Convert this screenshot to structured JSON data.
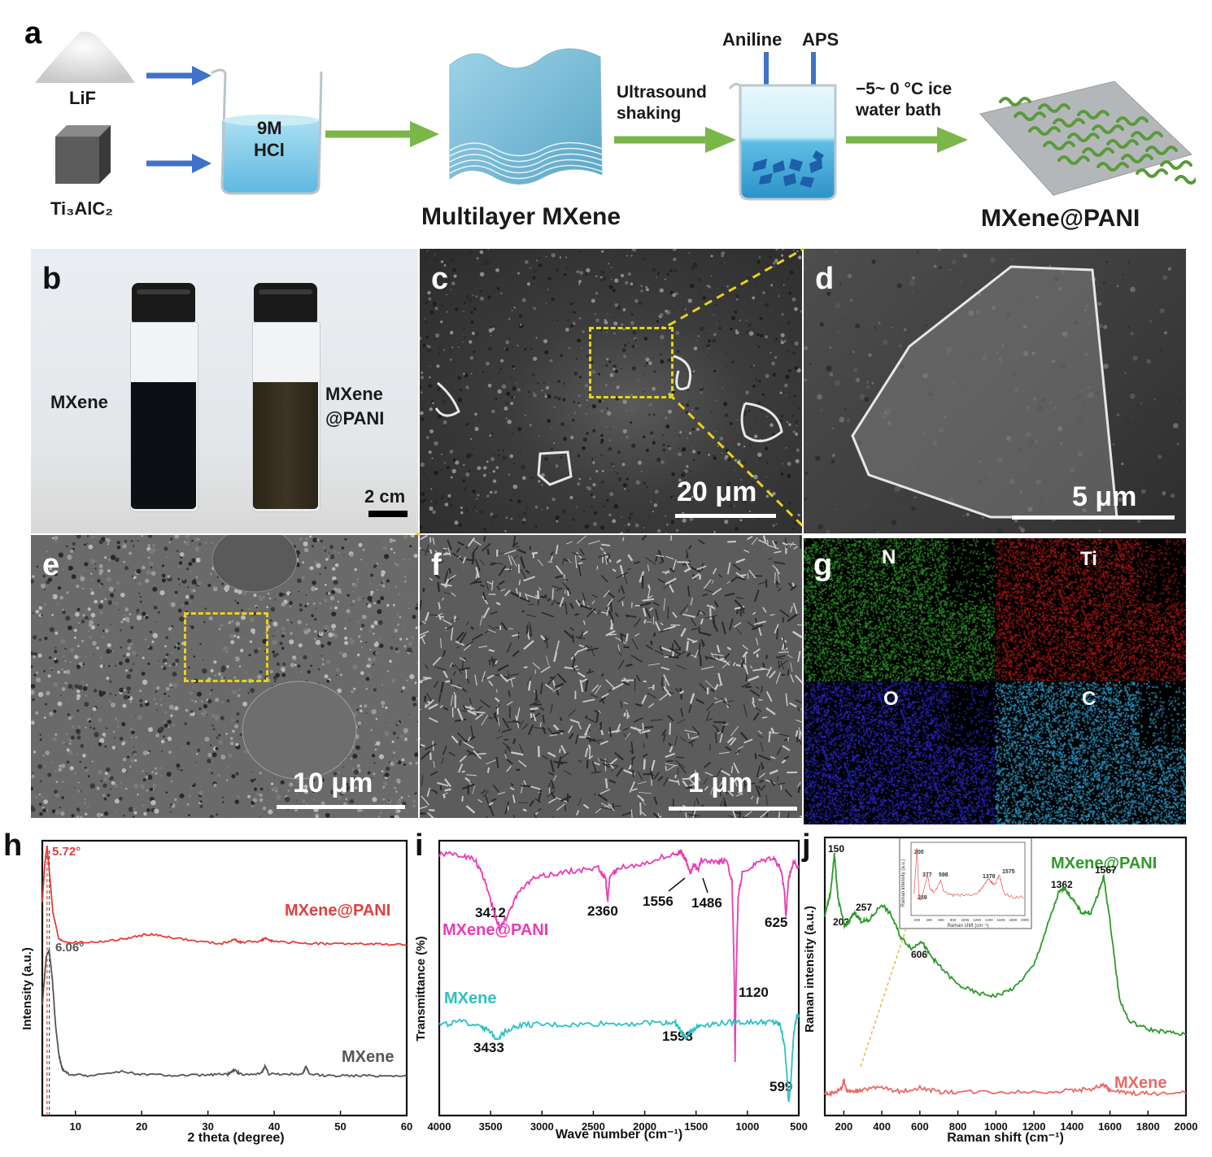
{
  "panel_a": {
    "letter": "a",
    "lif": "LiF",
    "ti3alc2": "Ti₃AlC₂",
    "hcl_line1": "9M",
    "hcl_line2": "HCl",
    "multilayer": "Multilayer MXene",
    "ultrasound_line1": "Ultrasound",
    "ultrasound_line2": "shaking",
    "aniline": "Aniline",
    "aps": "APS",
    "ice_line1": "−5~ 0 °C ice",
    "ice_line2": "water bath",
    "product": "MXene@PANI",
    "colors": {
      "blue_arrow": "#3f72c8",
      "green_arrow": "#7ab648",
      "liquid": "#7fcbe8",
      "pani": "#5a9a3a"
    }
  },
  "panel_b": {
    "letter": "b",
    "left_vial": "MXene",
    "right_vial_line1": "MXene",
    "right_vial_line2": "@PANI",
    "scale": "2 cm"
  },
  "panel_c": {
    "letter": "c",
    "scale": "20 μm"
  },
  "panel_d": {
    "letter": "d",
    "scale": "5 μm"
  },
  "panel_e": {
    "letter": "e",
    "scale": "10 μm"
  },
  "panel_f": {
    "letter": "f",
    "scale": "1 μm"
  },
  "panel_g": {
    "letter": "g",
    "maps": [
      {
        "element": "N",
        "color": "#2e9a2a"
      },
      {
        "element": "Ti",
        "color": "#b01818"
      },
      {
        "element": "O",
        "color": "#2a2ad0"
      },
      {
        "element": "C",
        "color": "#2fa4d6"
      }
    ]
  },
  "chart_data": [
    {
      "panel": "h",
      "type": "line",
      "xlabel": "2 theta (degree)",
      "ylabel": "Intensity (a.u.)",
      "xlim": [
        5,
        60
      ],
      "xticks": [
        "10",
        "20",
        "30",
        "40",
        "50",
        "60"
      ],
      "series": [
        {
          "name": "MXene@PANI",
          "color": "#e0403c",
          "x": [
            5,
            5.4,
            5.72,
            6.1,
            6.6,
            7.5,
            9,
            12,
            15,
            18,
            21,
            24,
            28,
            32,
            34,
            35,
            38,
            38.8,
            40,
            44,
            48,
            52,
            56,
            60
          ],
          "y": [
            0.78,
            0.92,
            0.98,
            0.88,
            0.74,
            0.64,
            0.63,
            0.63,
            0.635,
            0.645,
            0.66,
            0.65,
            0.635,
            0.625,
            0.64,
            0.63,
            0.635,
            0.645,
            0.632,
            0.628,
            0.625,
            0.625,
            0.623,
            0.622
          ]
        },
        {
          "name": "MXene",
          "color": "#555555",
          "x": [
            5,
            5.6,
            6.06,
            6.5,
            7,
            7.5,
            8,
            9,
            12,
            17,
            20,
            25,
            30,
            33,
            34,
            35,
            38,
            38.6,
            39.2,
            42,
            44.3,
            44.8,
            45.3,
            48,
            52,
            56,
            60
          ],
          "y": [
            0.4,
            0.58,
            0.6,
            0.5,
            0.33,
            0.22,
            0.17,
            0.15,
            0.145,
            0.16,
            0.15,
            0.145,
            0.148,
            0.15,
            0.165,
            0.15,
            0.152,
            0.18,
            0.152,
            0.15,
            0.152,
            0.18,
            0.15,
            0.145,
            0.145,
            0.145,
            0.145
          ]
        }
      ],
      "annotations": [
        {
          "text": "5.72°",
          "x": 5.72
        },
        {
          "text": "6.06°",
          "x": 6.06
        }
      ],
      "labels": {
        "mxene_pani": "MXene@PANI",
        "mxene": "MXene"
      }
    },
    {
      "panel": "i",
      "type": "line",
      "xlabel": "Wave number (cm⁻¹)",
      "ylabel": "Transmittance (%)",
      "xlim": [
        4000,
        500
      ],
      "xticks": [
        "4000",
        "3500",
        "3000",
        "2500",
        "2000",
        "1500",
        "1000",
        "500"
      ],
      "series": [
        {
          "name": "MXene@PANI",
          "color": "#e83cb4",
          "x": [
            4000,
            3800,
            3650,
            3550,
            3450,
            3412,
            3350,
            3250,
            3100,
            2900,
            2700,
            2450,
            2380,
            2360,
            2340,
            2250,
            2000,
            1750,
            1650,
            1600,
            1556,
            1520,
            1486,
            1450,
            1300,
            1200,
            1150,
            1130,
            1120,
            1110,
            1090,
            1050,
            900,
            750,
            680,
            640,
            625,
            600,
            550,
            500
          ],
          "y": [
            0.95,
            0.95,
            0.93,
            0.85,
            0.72,
            0.68,
            0.72,
            0.8,
            0.86,
            0.88,
            0.89,
            0.9,
            0.86,
            0.78,
            0.87,
            0.9,
            0.92,
            0.95,
            0.96,
            0.93,
            0.88,
            0.92,
            0.89,
            0.93,
            0.92,
            0.93,
            0.85,
            0.55,
            0.2,
            0.5,
            0.8,
            0.88,
            0.92,
            0.94,
            0.9,
            0.82,
            0.72,
            0.86,
            0.93,
            0.9
          ]
        },
        {
          "name": "MXene",
          "color": "#2ec0c4",
          "x": [
            4000,
            3800,
            3600,
            3500,
            3433,
            3350,
            3200,
            3000,
            2700,
            2400,
            2100,
            1800,
            1700,
            1650,
            1598,
            1550,
            1450,
            1300,
            1100,
            900,
            750,
            680,
            640,
            610,
            599,
            580,
            550,
            520,
            500
          ],
          "y": [
            0.33,
            0.34,
            0.33,
            0.3,
            0.28,
            0.31,
            0.33,
            0.33,
            0.33,
            0.335,
            0.335,
            0.34,
            0.335,
            0.31,
            0.28,
            0.31,
            0.33,
            0.335,
            0.34,
            0.34,
            0.34,
            0.33,
            0.26,
            0.12,
            0.05,
            0.1,
            0.3,
            0.36,
            0.36
          ]
        }
      ],
      "annotations": [
        "3412",
        "2360",
        "1556",
        "1486",
        "1120",
        "625",
        "3433",
        "1598",
        "599"
      ],
      "labels": {
        "mxene_pani": "MXene@PANI",
        "mxene": "MXene"
      }
    },
    {
      "panel": "j",
      "type": "line",
      "xlabel": "Raman shift (cm⁻¹)",
      "ylabel": "Raman intensity (a.u.)",
      "xlim": [
        100,
        2000
      ],
      "xticks": [
        "200",
        "400",
        "600",
        "800",
        "1000",
        "1200",
        "1400",
        "1600",
        "1800",
        "2000"
      ],
      "series": [
        {
          "name": "MXene@PANI",
          "color": "#2e9a2a",
          "x": [
            100,
            130,
            150,
            170,
            203,
            230,
            257,
            290,
            330,
            400,
            450,
            500,
            560,
            606,
            650,
            700,
            800,
            900,
            1000,
            1100,
            1200,
            1280,
            1330,
            1362,
            1400,
            1450,
            1500,
            1540,
            1567,
            1600,
            1650,
            1700,
            1800,
            1900,
            2000
          ],
          "y": [
            0.72,
            0.8,
            0.94,
            0.78,
            0.68,
            0.7,
            0.73,
            0.7,
            0.7,
            0.76,
            0.72,
            0.64,
            0.6,
            0.63,
            0.58,
            0.54,
            0.47,
            0.44,
            0.43,
            0.46,
            0.54,
            0.7,
            0.8,
            0.82,
            0.78,
            0.73,
            0.73,
            0.8,
            0.86,
            0.7,
            0.42,
            0.34,
            0.31,
            0.3,
            0.29
          ]
        },
        {
          "name": "MXene",
          "color": "#e86a66",
          "x": [
            100,
            150,
            190,
            200,
            215,
            250,
            300,
            400,
            500,
            600,
            700,
            800,
            1000,
            1200,
            1400,
            1500,
            1570,
            1600,
            1700,
            1800,
            2000
          ],
          "y": [
            0.08,
            0.08,
            0.1,
            0.13,
            0.09,
            0.085,
            0.095,
            0.1,
            0.085,
            0.1,
            0.085,
            0.085,
            0.085,
            0.085,
            0.09,
            0.095,
            0.11,
            0.09,
            0.08,
            0.08,
            0.08
          ]
        }
      ],
      "annotations": [
        "150",
        "203",
        "257",
        "606",
        "1362",
        "1567"
      ],
      "labels": {
        "mxene_pani": "MXene@PANI",
        "mxene": "MXene"
      },
      "inset": {
        "xlabel": "Raman shift (cm⁻¹)",
        "ylabel": "Raman intensity (a.u.)",
        "xticks": [
          "200",
          "400",
          "600",
          "800",
          "1000",
          "1200",
          "1400",
          "1600",
          "1800",
          "2000"
        ],
        "peaks": [
          "200",
          "377",
          "598",
          "259",
          "1378",
          "1575"
        ],
        "series": {
          "color": "#e86a66",
          "x": [
            150,
            200,
            230,
            259,
            300,
            377,
            420,
            500,
            598,
            650,
            800,
            1000,
            1200,
            1300,
            1378,
            1450,
            1500,
            1575,
            1650,
            1800,
            2000
          ],
          "y": [
            0.3,
            0.92,
            0.3,
            0.22,
            0.3,
            0.55,
            0.35,
            0.32,
            0.48,
            0.32,
            0.28,
            0.28,
            0.3,
            0.38,
            0.5,
            0.45,
            0.42,
            0.55,
            0.3,
            0.25,
            0.25
          ]
        }
      }
    }
  ]
}
